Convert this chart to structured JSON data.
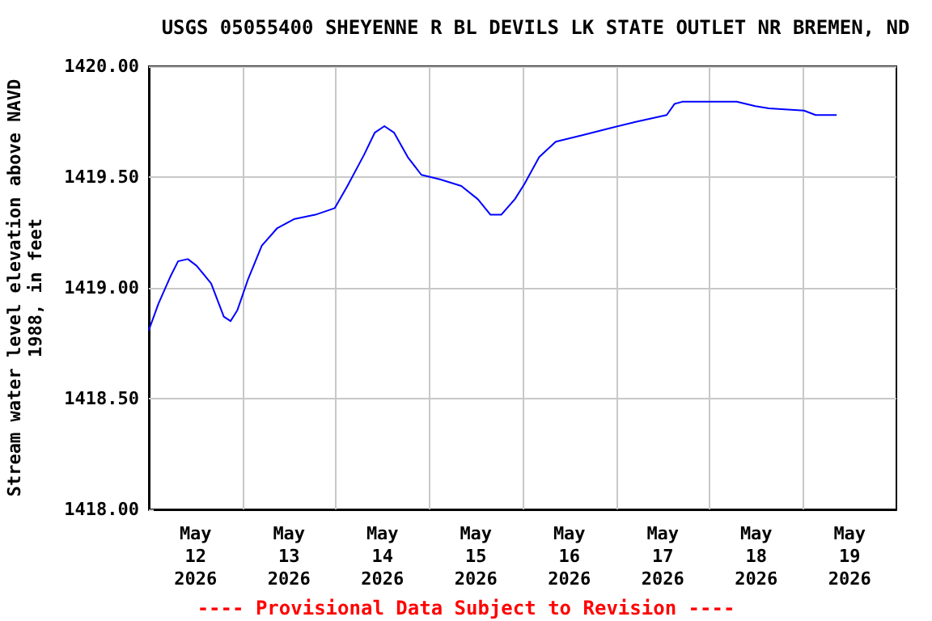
{
  "chart_data": {
    "type": "line",
    "title": "USGS 05055400 SHEYENNE R BL DEVILS LK STATE OUTLET NR BREMEN, ND",
    "ylabel": "Stream water level elevation above NAVD\n1988, in feet",
    "annotations": [
      "---- Provisional Data Subject to Revision ----"
    ],
    "x": [
      "2026-05-12T00:00",
      "2026-05-12T02:30",
      "2026-05-12T05:30",
      "2026-05-12T07:30",
      "2026-05-12T10:00",
      "2026-05-12T12:15",
      "2026-05-12T16:00",
      "2026-05-12T19:15",
      "2026-05-12T21:00",
      "2026-05-12T22:45",
      "2026-05-13T01:30",
      "2026-05-13T05:00",
      "2026-05-13T09:00",
      "2026-05-13T13:15",
      "2026-05-13T18:45",
      "2026-05-13T23:45",
      "2026-05-14T03:00",
      "2026-05-14T07:15",
      "2026-05-14T10:00",
      "2026-05-14T12:30",
      "2026-05-14T15:00",
      "2026-05-14T18:30",
      "2026-05-14T22:00",
      "2026-05-15T02:45",
      "2026-05-15T08:15",
      "2026-05-15T12:30",
      "2026-05-15T15:45",
      "2026-05-15T18:30",
      "2026-05-15T22:00",
      "2026-05-16T00:30",
      "2026-05-16T04:15",
      "2026-05-16T08:30",
      "2026-05-16T15:30",
      "2026-05-16T22:15",
      "2026-05-17T05:15",
      "2026-05-17T13:00",
      "2026-05-17T15:00",
      "2026-05-17T17:00",
      "2026-05-18T07:00",
      "2026-05-18T11:45",
      "2026-05-18T15:15",
      "2026-05-19T00:15",
      "2026-05-19T03:15",
      "2026-05-19T08:30"
    ],
    "series": [
      {
        "color": "#0000ff",
        "values": [
          1418.81,
          1418.93,
          1419.05,
          1419.12,
          1419.13,
          1419.1,
          1419.02,
          1418.87,
          1418.85,
          1418.9,
          1419.04,
          1419.19,
          1419.27,
          1419.31,
          1419.33,
          1419.36,
          1419.46,
          1419.6,
          1419.7,
          1419.73,
          1419.7,
          1419.59,
          1419.51,
          1419.49,
          1419.46,
          1419.4,
          1419.33,
          1419.33,
          1419.4,
          1419.47,
          1419.59,
          1419.66,
          1419.69,
          1419.72,
          1419.75,
          1419.78,
          1419.83,
          1419.84,
          1419.84,
          1419.82,
          1419.81,
          1419.8,
          1419.78,
          1419.78
        ]
      }
    ],
    "xlim": [
      "2026-05-12T00:00",
      "2026-05-20T00:00"
    ],
    "xticks": [
      {
        "value": "2026-05-12T12:00",
        "label": "May\n12\n2026"
      },
      {
        "value": "2026-05-13T00:00",
        "label": null
      },
      {
        "value": "2026-05-13T12:00",
        "label": "May\n13\n2026"
      },
      {
        "value": "2026-05-14T00:00",
        "label": null
      },
      {
        "value": "2026-05-14T12:00",
        "label": "May\n14\n2026"
      },
      {
        "value": "2026-05-15T00:00",
        "label": null
      },
      {
        "value": "2026-05-15T12:00",
        "label": "May\n15\n2026"
      },
      {
        "value": "2026-05-16T00:00",
        "label": null
      },
      {
        "value": "2026-05-16T12:00",
        "label": "May\n16\n2026"
      },
      {
        "value": "2026-05-17T00:00",
        "label": null
      },
      {
        "value": "2026-05-17T12:00",
        "label": "May\n17\n2026"
      },
      {
        "value": "2026-05-18T00:00",
        "label": null
      },
      {
        "value": "2026-05-18T12:00",
        "label": "May\n18\n2026"
      },
      {
        "value": "2026-05-19T00:00",
        "label": null
      },
      {
        "value": "2026-05-19T12:00",
        "label": "May\n19\n2026"
      }
    ],
    "ylim": [
      1418,
      1420
    ],
    "yticks": [
      {
        "value": 1418,
        "label": "1418.00"
      },
      {
        "value": 1418.5,
        "label": "1418.50"
      },
      {
        "value": 1419,
        "label": "1419.00"
      },
      {
        "value": 1419.5,
        "label": "1419.50"
      },
      {
        "value": 1420,
        "label": "1420.00"
      }
    ],
    "grid": true,
    "marker": "none",
    "line_style": "solid"
  }
}
